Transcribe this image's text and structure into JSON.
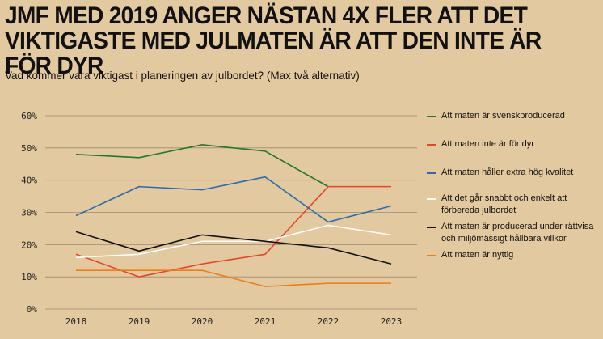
{
  "title": "JMF MED 2019 ANGER NÄSTAN 4X FLER ATT DET VIKTIGASTE MED JULMATEN ÄR ATT DEN INTE ÄR FÖR DYR",
  "subtitle": "Vad kommer vara viktigast i planeringen av julbordet? (Max två alternativ)",
  "background": "#e3c9a0",
  "chart_data": {
    "type": "line",
    "categories": [
      "2018",
      "2019",
      "2020",
      "2021",
      "2022",
      "2023"
    ],
    "ylim": [
      0,
      60
    ],
    "yticks": [
      0,
      10,
      20,
      30,
      40,
      50,
      60
    ],
    "ytick_labels": [
      "0%",
      "10%",
      "20%",
      "30%",
      "40%",
      "50%",
      "60%"
    ],
    "grid": true,
    "legend_position": "right",
    "series": [
      {
        "name": "Att maten är svenskproducerad",
        "color": "#1f7a2c",
        "values": [
          48,
          47,
          51,
          49,
          38,
          null
        ]
      },
      {
        "name": "Att maten inte är för dyr",
        "color": "#e8442a",
        "values": [
          17,
          10,
          14,
          17,
          38,
          38
        ]
      },
      {
        "name": "Att maten håller extra hög kvalitet",
        "color": "#2a6cb0",
        "values": [
          29,
          38,
          37,
          41,
          27,
          32
        ]
      },
      {
        "name": "Att det går snabbt och enkelt att förbereda julbordet",
        "color": "#ffffff",
        "values": [
          16,
          17,
          21,
          21,
          26,
          23
        ]
      },
      {
        "name": "Att maten är producerad under rättvisa och miljömässigt hållbara villkor",
        "color": "#111111",
        "values": [
          24,
          18,
          23,
          21,
          19,
          14
        ]
      },
      {
        "name": "Att maten är nyttig",
        "color": "#f07d12",
        "values": [
          12,
          12,
          12,
          7,
          8,
          8
        ]
      }
    ]
  }
}
